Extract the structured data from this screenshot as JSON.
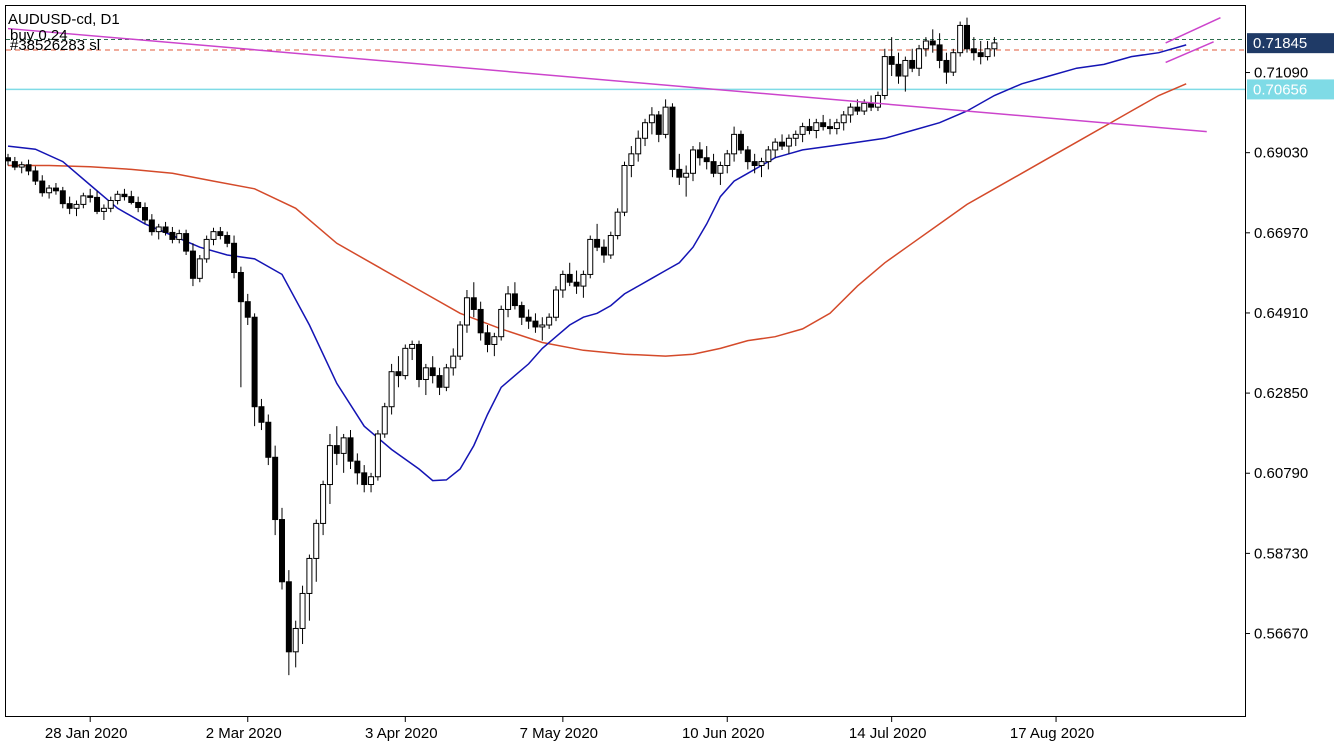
{
  "chart_data": {
    "type": "candlestick",
    "symbol_label": "AUDUSD-cd, D1",
    "order_line_1": "buy 0.24",
    "order_line_2": "#38526283 sl",
    "ylim": [
      0.5455,
      0.728
    ],
    "price_ticks": [
      "0.71090",
      "0.69030",
      "0.66970",
      "0.64910",
      "0.62850",
      "0.60790",
      "0.58730",
      "0.56670"
    ],
    "date_labels": [
      {
        "label": "28 Jan 2020",
        "index": 12
      },
      {
        "label": "2 Mar 2020",
        "index": 35
      },
      {
        "label": "3 Apr 2020",
        "index": 58
      },
      {
        "label": "7 May 2020",
        "index": 81
      },
      {
        "label": "10 Jun 2020",
        "index": 105
      },
      {
        "label": "14 Jul 2020",
        "index": 129
      },
      {
        "label": "17 Aug 2020",
        "index": 153
      }
    ],
    "current_price": {
      "label": "0.71845",
      "value": 0.71845,
      "color": "#1f3a66"
    },
    "support_line": {
      "label": "0.70656",
      "value": 0.70656,
      "color": "#7fdbe6"
    },
    "order_level": {
      "value": 0.7194,
      "color": "#2f6f4f"
    },
    "sl_level": {
      "value": 0.7167,
      "color": "#e05a3a"
    },
    "trendline_main": {
      "from": {
        "index": 0,
        "price": 0.7222
      },
      "to": {
        "index": 175,
        "price": 0.6957
      },
      "color": "#cc44cc"
    },
    "channel_upper": {
      "from": {
        "index": 169,
        "price": 0.7185
      },
      "to": {
        "index": 177,
        "price": 0.725
      },
      "color": "#cc44cc"
    },
    "channel_lower": {
      "from": {
        "index": 169,
        "price": 0.7135
      },
      "to": {
        "index": 176,
        "price": 0.7188
      },
      "color": "#cc44cc"
    },
    "ma_fast": {
      "color": "#1414b4",
      "values": [
        [
          0,
          0.692
        ],
        [
          4,
          0.6912
        ],
        [
          8,
          0.688
        ],
        [
          12,
          0.682
        ],
        [
          16,
          0.676
        ],
        [
          20,
          0.672
        ],
        [
          24,
          0.669
        ],
        [
          28,
          0.666
        ],
        [
          32,
          0.664
        ],
        [
          36,
          0.663
        ],
        [
          40,
          0.659
        ],
        [
          44,
          0.646
        ],
        [
          48,
          0.631
        ],
        [
          52,
          0.62
        ],
        [
          56,
          0.614
        ],
        [
          60,
          0.609
        ],
        [
          62,
          0.606
        ],
        [
          64,
          0.6062
        ],
        [
          66,
          0.609
        ],
        [
          68,
          0.615
        ],
        [
          70,
          0.623
        ],
        [
          72,
          0.63
        ],
        [
          74,
          0.633
        ],
        [
          76,
          0.636
        ],
        [
          78,
          0.64
        ],
        [
          80,
          0.643
        ],
        [
          82,
          0.646
        ],
        [
          84,
          0.648
        ],
        [
          86,
          0.649
        ],
        [
          88,
          0.651
        ],
        [
          90,
          0.654
        ],
        [
          92,
          0.656
        ],
        [
          94,
          0.658
        ],
        [
          96,
          0.66
        ],
        [
          98,
          0.662
        ],
        [
          100,
          0.666
        ],
        [
          102,
          0.672
        ],
        [
          104,
          0.679
        ],
        [
          106,
          0.683
        ],
        [
          108,
          0.685
        ],
        [
          110,
          0.687
        ],
        [
          112,
          0.689
        ],
        [
          114,
          0.69
        ],
        [
          116,
          0.691
        ],
        [
          120,
          0.692
        ],
        [
          124,
          0.693
        ],
        [
          128,
          0.694
        ],
        [
          132,
          0.696
        ],
        [
          136,
          0.698
        ],
        [
          140,
          0.701
        ],
        [
          144,
          0.705
        ],
        [
          148,
          0.708
        ],
        [
          152,
          0.71
        ],
        [
          156,
          0.712
        ],
        [
          160,
          0.713
        ],
        [
          164,
          0.715
        ],
        [
          168,
          0.716
        ],
        [
          172,
          0.718
        ]
      ]
    },
    "ma_slow": {
      "color": "#d44a2a",
      "values": [
        [
          0,
          0.687
        ],
        [
          6,
          0.687
        ],
        [
          12,
          0.6867
        ],
        [
          18,
          0.686
        ],
        [
          24,
          0.685
        ],
        [
          30,
          0.683
        ],
        [
          36,
          0.681
        ],
        [
          42,
          0.676
        ],
        [
          48,
          0.667
        ],
        [
          54,
          0.661
        ],
        [
          60,
          0.655
        ],
        [
          66,
          0.649
        ],
        [
          72,
          0.645
        ],
        [
          78,
          0.6415
        ],
        [
          84,
          0.6395
        ],
        [
          90,
          0.6385
        ],
        [
          96,
          0.638
        ],
        [
          100,
          0.6385
        ],
        [
          104,
          0.64
        ],
        [
          108,
          0.642
        ],
        [
          112,
          0.643
        ],
        [
          116,
          0.645
        ],
        [
          120,
          0.649
        ],
        [
          124,
          0.656
        ],
        [
          128,
          0.662
        ],
        [
          132,
          0.667
        ],
        [
          136,
          0.672
        ],
        [
          140,
          0.677
        ],
        [
          144,
          0.681
        ],
        [
          148,
          0.685
        ],
        [
          152,
          0.689
        ],
        [
          156,
          0.693
        ],
        [
          160,
          0.697
        ],
        [
          164,
          0.701
        ],
        [
          168,
          0.705
        ],
        [
          172,
          0.708
        ]
      ]
    },
    "candles": [
      [
        0.689,
        0.69,
        0.687,
        0.6882
      ],
      [
        0.688,
        0.6892,
        0.6858,
        0.6866
      ],
      [
        0.6866,
        0.688,
        0.685,
        0.6872
      ],
      [
        0.6872,
        0.6885,
        0.6845,
        0.6856
      ],
      [
        0.6856,
        0.6868,
        0.682,
        0.683
      ],
      [
        0.683,
        0.6845,
        0.679,
        0.68
      ],
      [
        0.68,
        0.682,
        0.6785,
        0.6812
      ],
      [
        0.6812,
        0.6825,
        0.6795,
        0.6805
      ],
      [
        0.6805,
        0.6815,
        0.676,
        0.6772
      ],
      [
        0.6772,
        0.679,
        0.6745,
        0.676
      ],
      [
        0.676,
        0.678,
        0.674,
        0.677
      ],
      [
        0.677,
        0.68,
        0.676,
        0.6792
      ],
      [
        0.6792,
        0.681,
        0.6775,
        0.6788
      ],
      [
        0.6788,
        0.6805,
        0.6745,
        0.6752
      ],
      [
        0.6752,
        0.677,
        0.673,
        0.676
      ],
      [
        0.676,
        0.679,
        0.675,
        0.678
      ],
      [
        0.678,
        0.6805,
        0.677,
        0.6796
      ],
      [
        0.6796,
        0.681,
        0.678,
        0.679
      ],
      [
        0.679,
        0.6805,
        0.677,
        0.6775
      ],
      [
        0.6775,
        0.679,
        0.675,
        0.6762
      ],
      [
        0.6762,
        0.6775,
        0.672,
        0.673
      ],
      [
        0.673,
        0.6745,
        0.669,
        0.67
      ],
      [
        0.67,
        0.672,
        0.668,
        0.6712
      ],
      [
        0.6712,
        0.6725,
        0.669,
        0.6698
      ],
      [
        0.6698,
        0.6712,
        0.667,
        0.668
      ],
      [
        0.668,
        0.6705,
        0.667,
        0.6695
      ],
      [
        0.6695,
        0.6705,
        0.664,
        0.665
      ],
      [
        0.665,
        0.667,
        0.656,
        0.658
      ],
      [
        0.658,
        0.664,
        0.657,
        0.663
      ],
      [
        0.663,
        0.669,
        0.662,
        0.668
      ],
      [
        0.668,
        0.671,
        0.6665,
        0.67
      ],
      [
        0.67,
        0.6712,
        0.668,
        0.669
      ],
      [
        0.669,
        0.67,
        0.666,
        0.667
      ],
      [
        0.667,
        0.669,
        0.658,
        0.6595
      ],
      [
        0.6595,
        0.661,
        0.63,
        0.652
      ],
      [
        0.652,
        0.654,
        0.646,
        0.648
      ],
      [
        0.648,
        0.649,
        0.62,
        0.625
      ],
      [
        0.625,
        0.627,
        0.619,
        0.621
      ],
      [
        0.621,
        0.623,
        0.61,
        0.612
      ],
      [
        0.612,
        0.615,
        0.592,
        0.596
      ],
      [
        0.596,
        0.599,
        0.578,
        0.58
      ],
      [
        0.58,
        0.583,
        0.556,
        0.562
      ],
      [
        0.562,
        0.57,
        0.558,
        0.568
      ],
      [
        0.568,
        0.579,
        0.564,
        0.577
      ],
      [
        0.577,
        0.587,
        0.57,
        0.586
      ],
      [
        0.586,
        0.596,
        0.58,
        0.595
      ],
      [
        0.595,
        0.606,
        0.592,
        0.605
      ],
      [
        0.605,
        0.618,
        0.6,
        0.615
      ],
      [
        0.615,
        0.62,
        0.61,
        0.613
      ],
      [
        0.613,
        0.618,
        0.608,
        0.617
      ],
      [
        0.617,
        0.619,
        0.609,
        0.611
      ],
      [
        0.611,
        0.613,
        0.605,
        0.608
      ],
      [
        0.608,
        0.61,
        0.603,
        0.605
      ],
      [
        0.605,
        0.608,
        0.603,
        0.607
      ],
      [
        0.607,
        0.619,
        0.606,
        0.618
      ],
      [
        0.618,
        0.626,
        0.617,
        0.625
      ],
      [
        0.625,
        0.636,
        0.623,
        0.634
      ],
      [
        0.634,
        0.638,
        0.63,
        0.633
      ],
      [
        0.633,
        0.641,
        0.632,
        0.64
      ],
      [
        0.64,
        0.642,
        0.637,
        0.641
      ],
      [
        0.641,
        0.642,
        0.63,
        0.632
      ],
      [
        0.632,
        0.636,
        0.628,
        0.635
      ],
      [
        0.635,
        0.638,
        0.631,
        0.633
      ],
      [
        0.633,
        0.635,
        0.628,
        0.63
      ],
      [
        0.63,
        0.636,
        0.629,
        0.635
      ],
      [
        0.635,
        0.64,
        0.633,
        0.638
      ],
      [
        0.638,
        0.647,
        0.637,
        0.646
      ],
      [
        0.646,
        0.655,
        0.644,
        0.653
      ],
      [
        0.653,
        0.657,
        0.648,
        0.65
      ],
      [
        0.65,
        0.652,
        0.642,
        0.644
      ],
      [
        0.644,
        0.646,
        0.639,
        0.641
      ],
      [
        0.641,
        0.644,
        0.638,
        0.643
      ],
      [
        0.643,
        0.651,
        0.642,
        0.65
      ],
      [
        0.65,
        0.656,
        0.648,
        0.654
      ],
      [
        0.654,
        0.657,
        0.65,
        0.651
      ],
      [
        0.651,
        0.652,
        0.646,
        0.648
      ],
      [
        0.648,
        0.65,
        0.645,
        0.647
      ],
      [
        0.647,
        0.649,
        0.644,
        0.6455
      ],
      [
        0.6455,
        0.648,
        0.642,
        0.646
      ],
      [
        0.646,
        0.649,
        0.645,
        0.648
      ],
      [
        0.648,
        0.656,
        0.647,
        0.655
      ],
      [
        0.655,
        0.66,
        0.653,
        0.659
      ],
      [
        0.659,
        0.662,
        0.656,
        0.657
      ],
      [
        0.657,
        0.66,
        0.654,
        0.656
      ],
      [
        0.656,
        0.66,
        0.653,
        0.659
      ],
      [
        0.659,
        0.669,
        0.658,
        0.668
      ],
      [
        0.668,
        0.672,
        0.665,
        0.666
      ],
      [
        0.666,
        0.668,
        0.662,
        0.664
      ],
      [
        0.664,
        0.67,
        0.663,
        0.669
      ],
      [
        0.669,
        0.676,
        0.668,
        0.675
      ],
      [
        0.675,
        0.688,
        0.674,
        0.687
      ],
      [
        0.687,
        0.692,
        0.684,
        0.69
      ],
      [
        0.69,
        0.696,
        0.688,
        0.694
      ],
      [
        0.694,
        0.699,
        0.692,
        0.698
      ],
      [
        0.698,
        0.702,
        0.695,
        0.7
      ],
      [
        0.7,
        0.701,
        0.693,
        0.695
      ],
      [
        0.695,
        0.704,
        0.694,
        0.702
      ],
      [
        0.702,
        0.703,
        0.684,
        0.686
      ],
      [
        0.686,
        0.69,
        0.682,
        0.684
      ],
      [
        0.684,
        0.687,
        0.679,
        0.685
      ],
      [
        0.685,
        0.692,
        0.683,
        0.691
      ],
      [
        0.691,
        0.693,
        0.687,
        0.689
      ],
      [
        0.689,
        0.692,
        0.686,
        0.688
      ],
      [
        0.688,
        0.69,
        0.684,
        0.685
      ],
      [
        0.685,
        0.688,
        0.682,
        0.687
      ],
      [
        0.687,
        0.691,
        0.685,
        0.69
      ],
      [
        0.69,
        0.697,
        0.688,
        0.695
      ],
      [
        0.695,
        0.696,
        0.69,
        0.691
      ],
      [
        0.691,
        0.692,
        0.686,
        0.688
      ],
      [
        0.688,
        0.69,
        0.685,
        0.687
      ],
      [
        0.687,
        0.689,
        0.684,
        0.688
      ],
      [
        0.688,
        0.692,
        0.686,
        0.691
      ],
      [
        0.691,
        0.694,
        0.689,
        0.693
      ],
      [
        0.693,
        0.695,
        0.691,
        0.692
      ],
      [
        0.692,
        0.695,
        0.69,
        0.694
      ],
      [
        0.694,
        0.696,
        0.692,
        0.695
      ],
      [
        0.695,
        0.698,
        0.693,
        0.697
      ],
      [
        0.697,
        0.699,
        0.695,
        0.696
      ],
      [
        0.696,
        0.699,
        0.694,
        0.698
      ],
      [
        0.698,
        0.7,
        0.696,
        0.697
      ],
      [
        0.697,
        0.699,
        0.695,
        0.6965
      ],
      [
        0.6965,
        0.699,
        0.695,
        0.698
      ],
      [
        0.698,
        0.701,
        0.696,
        0.7
      ],
      [
        0.7,
        0.703,
        0.698,
        0.702
      ],
      [
        0.702,
        0.704,
        0.7,
        0.701
      ],
      [
        0.701,
        0.704,
        0.7,
        0.703
      ],
      [
        0.703,
        0.705,
        0.701,
        0.702
      ],
      [
        0.702,
        0.706,
        0.701,
        0.705
      ],
      [
        0.705,
        0.717,
        0.704,
        0.715
      ],
      [
        0.715,
        0.72,
        0.71,
        0.713
      ],
      [
        0.713,
        0.716,
        0.708,
        0.71
      ],
      [
        0.71,
        0.715,
        0.706,
        0.714
      ],
      [
        0.714,
        0.717,
        0.711,
        0.712
      ],
      [
        0.712,
        0.718,
        0.71,
        0.717
      ],
      [
        0.717,
        0.72,
        0.715,
        0.719
      ],
      [
        0.719,
        0.722,
        0.716,
        0.718
      ],
      [
        0.718,
        0.721,
        0.712,
        0.714
      ],
      [
        0.714,
        0.716,
        0.708,
        0.711
      ],
      [
        0.711,
        0.717,
        0.71,
        0.716
      ],
      [
        0.716,
        0.724,
        0.715,
        0.723
      ],
      [
        0.723,
        0.725,
        0.716,
        0.717
      ],
      [
        0.717,
        0.72,
        0.714,
        0.716
      ],
      [
        0.716,
        0.719,
        0.713,
        0.715
      ],
      [
        0.715,
        0.719,
        0.714,
        0.717
      ],
      [
        0.717,
        0.72,
        0.715,
        0.7185
      ]
    ]
  }
}
